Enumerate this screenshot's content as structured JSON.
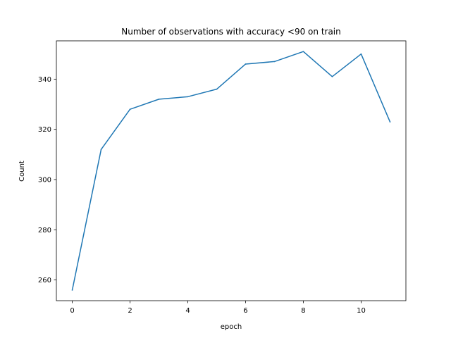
{
  "chart_data": {
    "type": "line",
    "title": "Number of observations with accuracy <90 on train",
    "xlabel": "epoch",
    "ylabel": "Count",
    "x": [
      0,
      1,
      2,
      3,
      4,
      5,
      6,
      7,
      8,
      9,
      10,
      11
    ],
    "series": [
      {
        "values": [
          256,
          312,
          328,
          332,
          333,
          336,
          346,
          347,
          351,
          341,
          350,
          323
        ],
        "color": "#1f77b4"
      }
    ],
    "xlim": [
      -0.55,
      11.55
    ],
    "ylim": [
      251.75,
      355.25
    ],
    "xticks": [
      0,
      2,
      4,
      6,
      8,
      10
    ],
    "yticks": [
      260,
      280,
      300,
      320,
      340
    ],
    "grid": false,
    "legend": false
  }
}
